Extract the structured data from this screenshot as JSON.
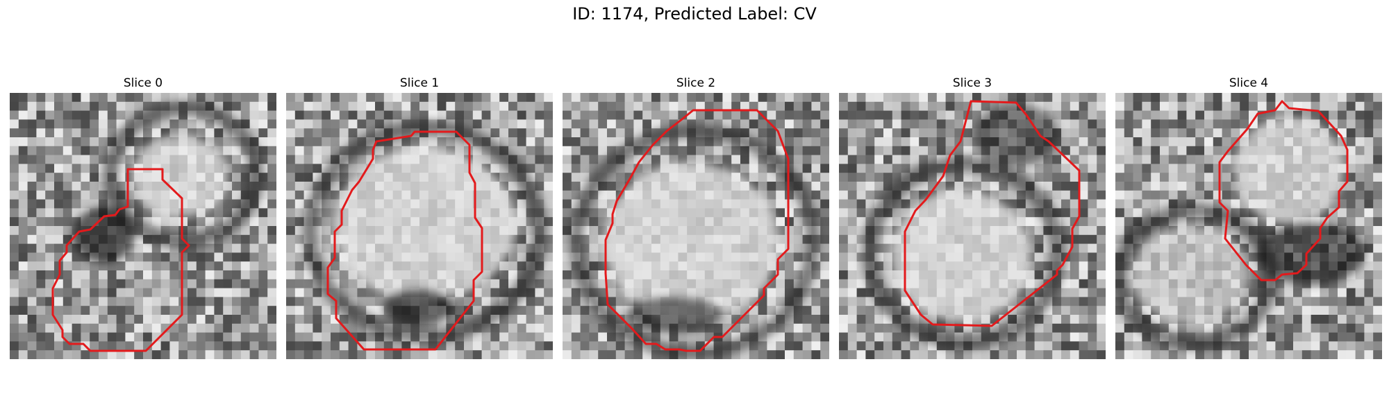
{
  "figure": {
    "title": "ID: 1174, Predicted Label: CV"
  },
  "colors": {
    "contour": "#e31a1c",
    "colormap": "gray"
  },
  "panels": [
    {
      "title": "Slice 0",
      "icon": "micrograph-slice-image"
    },
    {
      "title": "Slice 1",
      "icon": "micrograph-slice-image"
    },
    {
      "title": "Slice 2",
      "icon": "micrograph-slice-image"
    },
    {
      "title": "Slice 3",
      "icon": "micrograph-slice-image"
    },
    {
      "title": "Slice 4",
      "icon": "micrograph-slice-image"
    }
  ]
}
